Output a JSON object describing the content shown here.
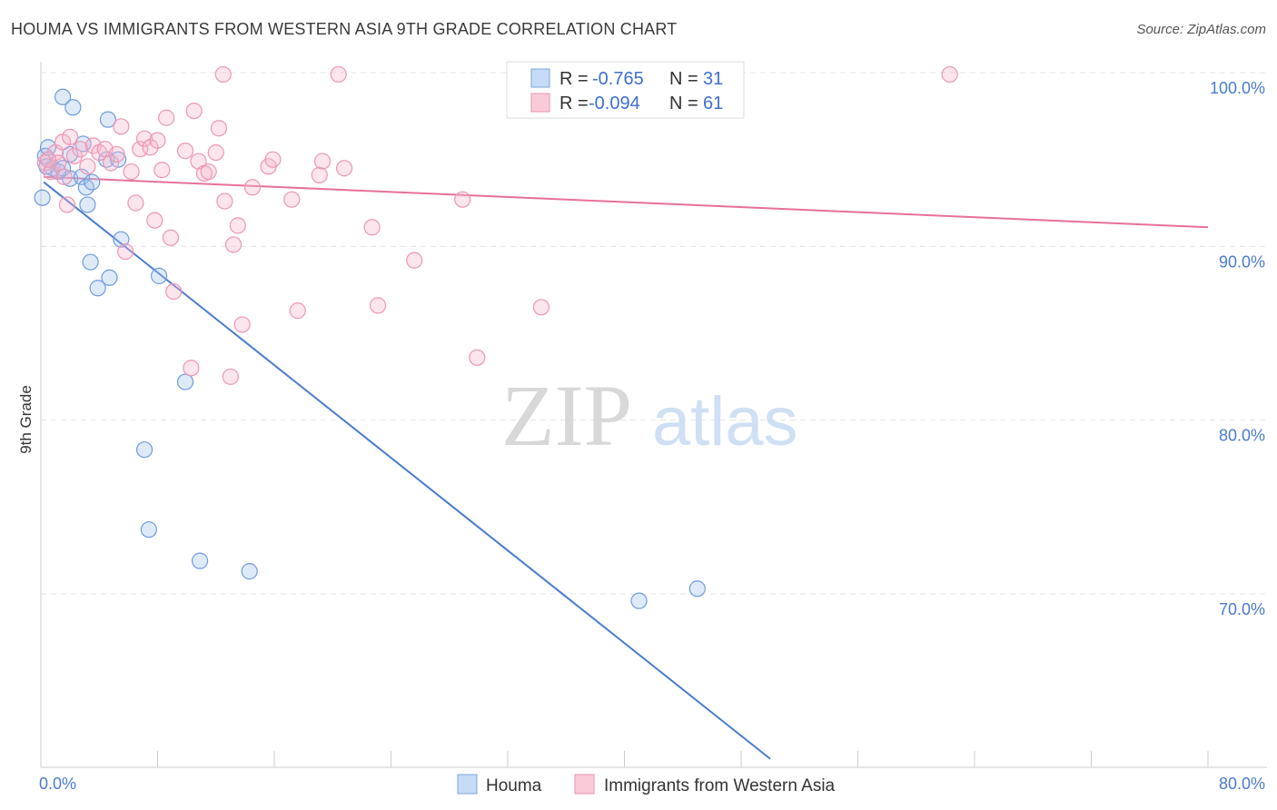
{
  "title": "HOUMA VS IMMIGRANTS FROM WESTERN ASIA 9TH GRADE CORRELATION CHART",
  "source": "Source: ZipAtlas.com",
  "watermark": {
    "zip": "ZIP",
    "atlas": "atlas"
  },
  "legend_top": [
    {
      "r_label": "R =",
      "r_value": "-0.765",
      "n_label": "N =",
      "n_value": "31"
    },
    {
      "r_label": "R =",
      "r_value": "-0.094",
      "n_label": "N =",
      "n_value": "61"
    }
  ],
  "chart_data": {
    "type": "scatter",
    "xlabel": "",
    "ylabel": "9th Grade",
    "xlim": [
      0,
      80
    ],
    "ylim": [
      60,
      100
    ],
    "x_tick_labels": [
      "0.0%",
      "80.0%"
    ],
    "y_ticks": [
      70,
      80,
      90,
      100
    ],
    "y_tick_labels": [
      "70.0%",
      "80.0%",
      "90.0%",
      "100.0%"
    ],
    "grid": true,
    "legend_position": "bottom-center",
    "colors": {
      "houma": "#4a7bd0",
      "immigrants": "#e8709a"
    },
    "series": [
      {
        "name": "Houma",
        "color": "#4a7bd0",
        "trend": {
          "x": [
            0.2,
            50.0
          ],
          "y": [
            93.7,
            60.5
          ]
        },
        "points": [
          [
            0.3,
            95.2
          ],
          [
            0.5,
            95.7
          ],
          [
            0.8,
            94.5
          ],
          [
            1.2,
            94.3
          ],
          [
            1.5,
            98.6
          ],
          [
            2.2,
            98.0
          ],
          [
            2.0,
            93.9
          ],
          [
            1.5,
            94.5
          ],
          [
            2.0,
            95.3
          ],
          [
            2.9,
            95.9
          ],
          [
            2.8,
            94.0
          ],
          [
            3.1,
            93.4
          ],
          [
            3.2,
            92.4
          ],
          [
            3.5,
            93.7
          ],
          [
            4.5,
            95.0
          ],
          [
            4.6,
            97.3
          ],
          [
            5.3,
            95.0
          ],
          [
            5.5,
            90.4
          ],
          [
            3.4,
            89.1
          ],
          [
            3.9,
            87.6
          ],
          [
            4.7,
            88.2
          ],
          [
            8.1,
            88.3
          ],
          [
            9.9,
            82.2
          ],
          [
            7.1,
            78.3
          ],
          [
            7.4,
            73.7
          ],
          [
            10.9,
            71.9
          ],
          [
            14.3,
            71.3
          ],
          [
            41.0,
            69.6
          ],
          [
            45.0,
            70.3
          ],
          [
            0.1,
            92.8
          ],
          [
            0.4,
            94.6
          ]
        ]
      },
      {
        "name": "Immigrants from Western Asia",
        "color": "#e8709a",
        "trend": {
          "x": [
            0.2,
            80.0
          ],
          "y": [
            94.0,
            91.1
          ]
        },
        "points": [
          [
            0.3,
            94.8
          ],
          [
            0.7,
            94.3
          ],
          [
            1.0,
            95.4
          ],
          [
            1.2,
            94.8
          ],
          [
            1.5,
            96.0
          ],
          [
            1.8,
            92.4
          ],
          [
            2.0,
            96.3
          ],
          [
            2.3,
            95.2
          ],
          [
            2.7,
            95.6
          ],
          [
            3.2,
            94.6
          ],
          [
            3.6,
            95.8
          ],
          [
            4.0,
            95.4
          ],
          [
            4.4,
            95.6
          ],
          [
            4.8,
            94.8
          ],
          [
            5.2,
            95.3
          ],
          [
            5.5,
            96.9
          ],
          [
            5.8,
            89.7
          ],
          [
            6.2,
            94.3
          ],
          [
            6.5,
            92.5
          ],
          [
            6.8,
            95.6
          ],
          [
            7.1,
            96.2
          ],
          [
            7.5,
            95.7
          ],
          [
            7.8,
            91.5
          ],
          [
            8.0,
            96.1
          ],
          [
            8.3,
            94.4
          ],
          [
            8.6,
            97.4
          ],
          [
            8.9,
            90.5
          ],
          [
            9.1,
            87.4
          ],
          [
            9.9,
            95.5
          ],
          [
            10.3,
            83.0
          ],
          [
            10.5,
            97.8
          ],
          [
            10.8,
            94.9
          ],
          [
            11.2,
            94.2
          ],
          [
            11.5,
            94.3
          ],
          [
            12.0,
            95.4
          ],
          [
            12.2,
            96.8
          ],
          [
            12.6,
            92.6
          ],
          [
            13.0,
            82.5
          ],
          [
            13.2,
            90.1
          ],
          [
            13.5,
            91.2
          ],
          [
            13.8,
            85.5
          ],
          [
            14.5,
            93.4
          ],
          [
            15.6,
            94.6
          ],
          [
            15.9,
            95.0
          ],
          [
            17.2,
            92.7
          ],
          [
            17.6,
            86.3
          ],
          [
            19.1,
            94.1
          ],
          [
            19.3,
            94.9
          ],
          [
            20.8,
            94.5
          ],
          [
            22.7,
            91.1
          ],
          [
            23.1,
            86.6
          ],
          [
            25.6,
            89.2
          ],
          [
            28.9,
            92.7
          ],
          [
            29.9,
            83.6
          ],
          [
            34.3,
            86.5
          ],
          [
            12.5,
            99.9
          ],
          [
            20.4,
            99.9
          ],
          [
            42.8,
            99.8
          ],
          [
            62.3,
            99.9
          ],
          [
            0.5,
            95.0
          ],
          [
            1.6,
            94.0
          ]
        ]
      }
    ]
  }
}
